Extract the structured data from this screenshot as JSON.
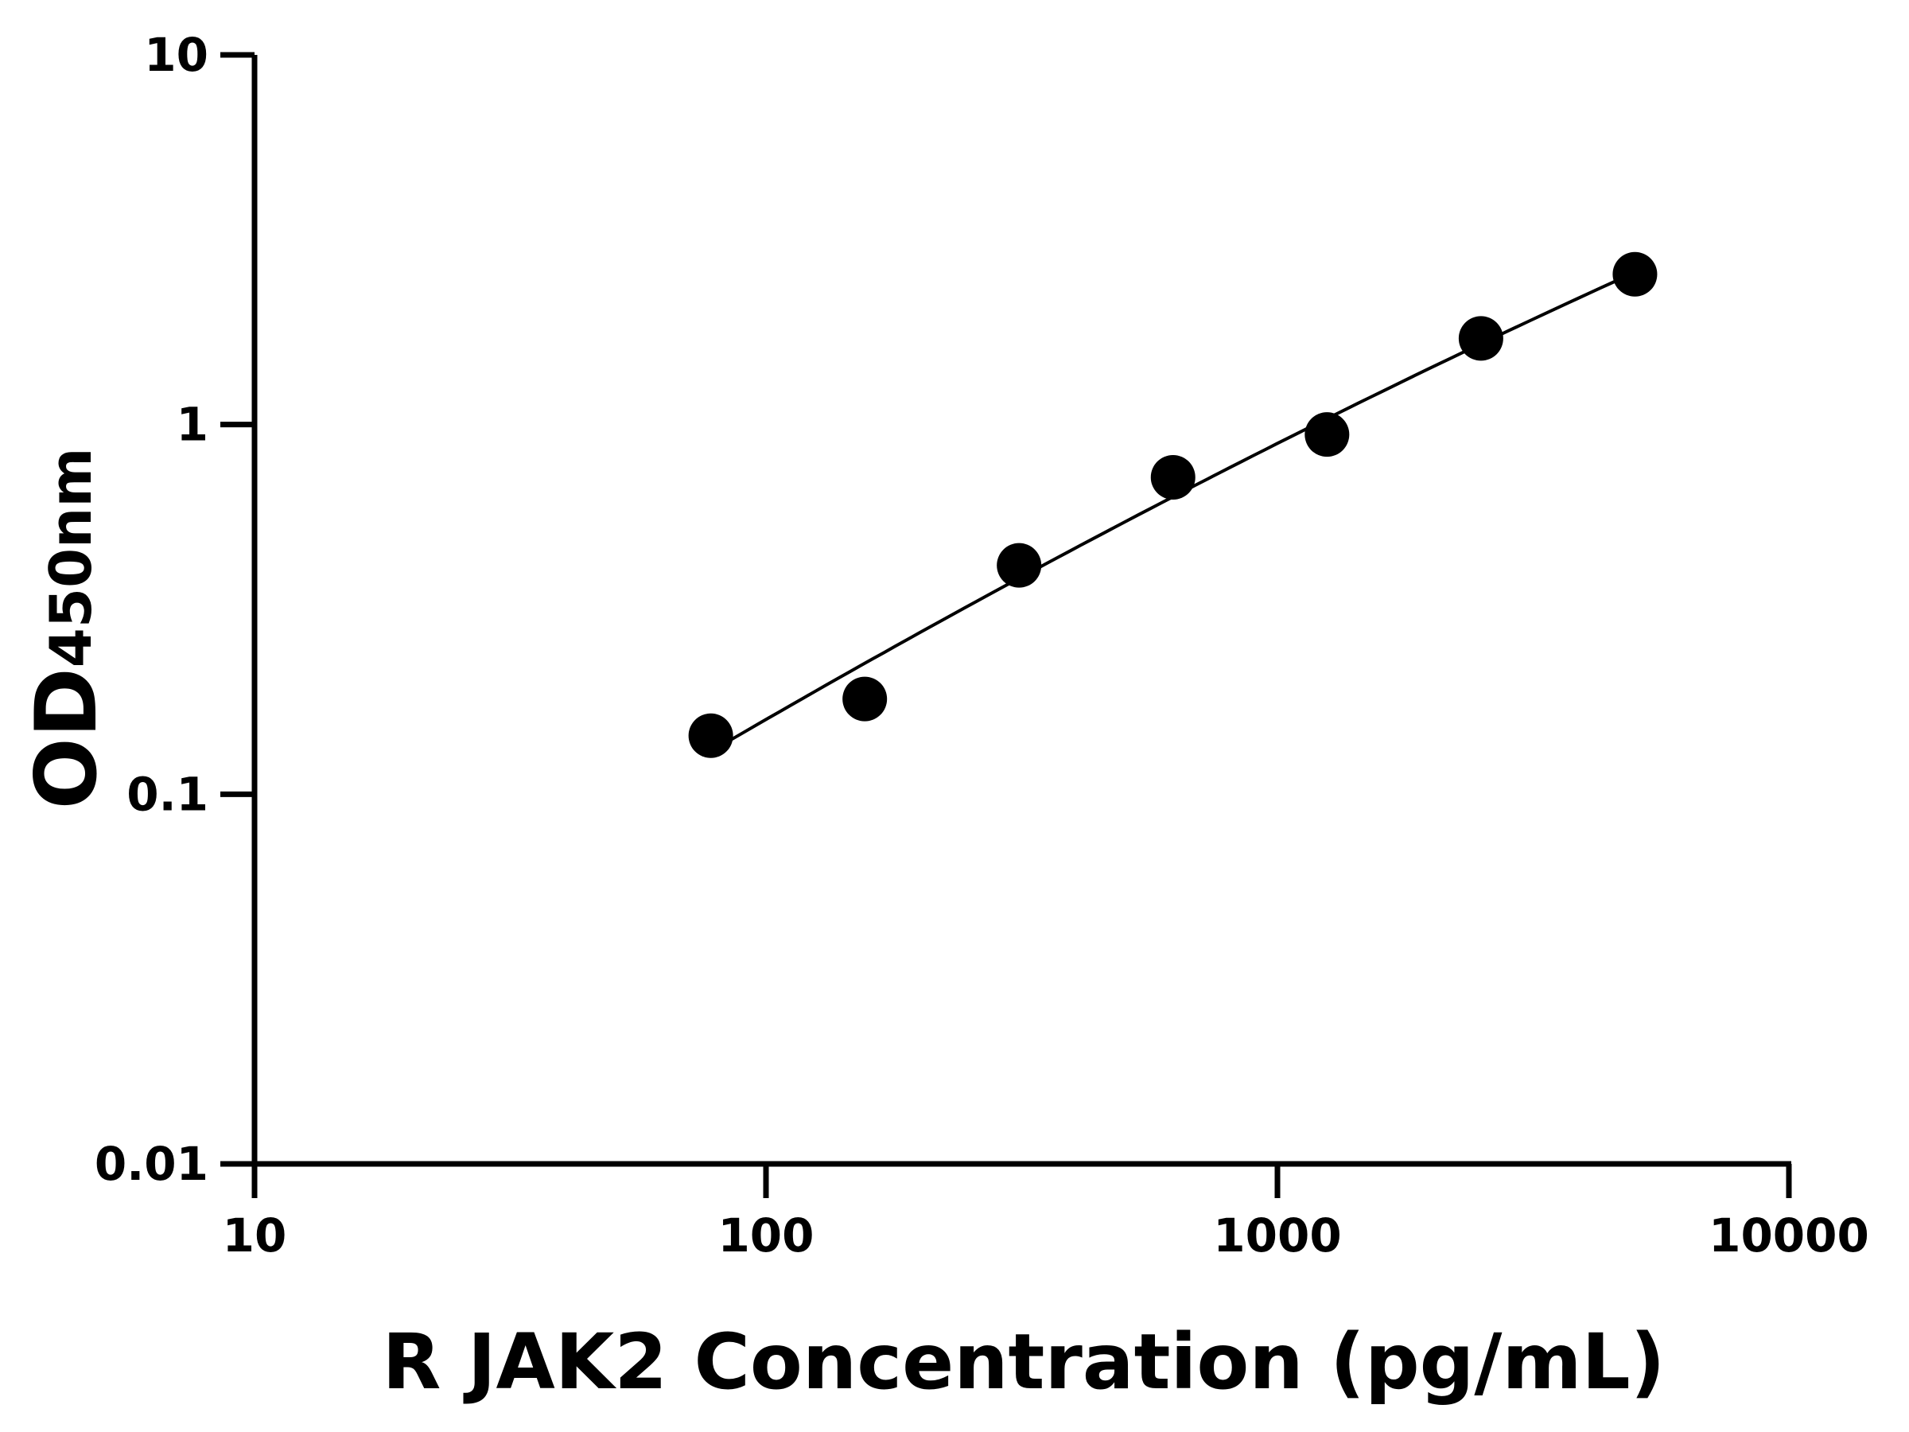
{
  "chart_data": {
    "type": "scatter",
    "title": "",
    "xlabel": "R JAK2 Concentration (pg/mL)",
    "ylabel_main": "OD",
    "ylabel_sub": "450nm",
    "x_scale": "log",
    "y_scale": "log",
    "xlim": [
      10,
      10000
    ],
    "ylim": [
      0.01,
      10
    ],
    "x_ticks": [
      10,
      100,
      1000,
      10000
    ],
    "x_tick_labels": [
      "10",
      "100",
      "1000",
      "10000"
    ],
    "y_ticks": [
      0.01,
      0.1,
      1,
      10
    ],
    "y_tick_labels": [
      "0.01",
      "0.1",
      "1",
      "10"
    ],
    "grid": false,
    "legend": "none",
    "fit_curve": true,
    "colors": {
      "points": "#000000",
      "curve": "#000000",
      "axes": "#000000"
    },
    "points": [
      {
        "x": 78,
        "y": 0.144
      },
      {
        "x": 156,
        "y": 0.181
      },
      {
        "x": 312.5,
        "y": 0.416
      },
      {
        "x": 625,
        "y": 0.72
      },
      {
        "x": 1250,
        "y": 0.94
      },
      {
        "x": 2500,
        "y": 1.71
      },
      {
        "x": 5000,
        "y": 2.55
      }
    ]
  }
}
